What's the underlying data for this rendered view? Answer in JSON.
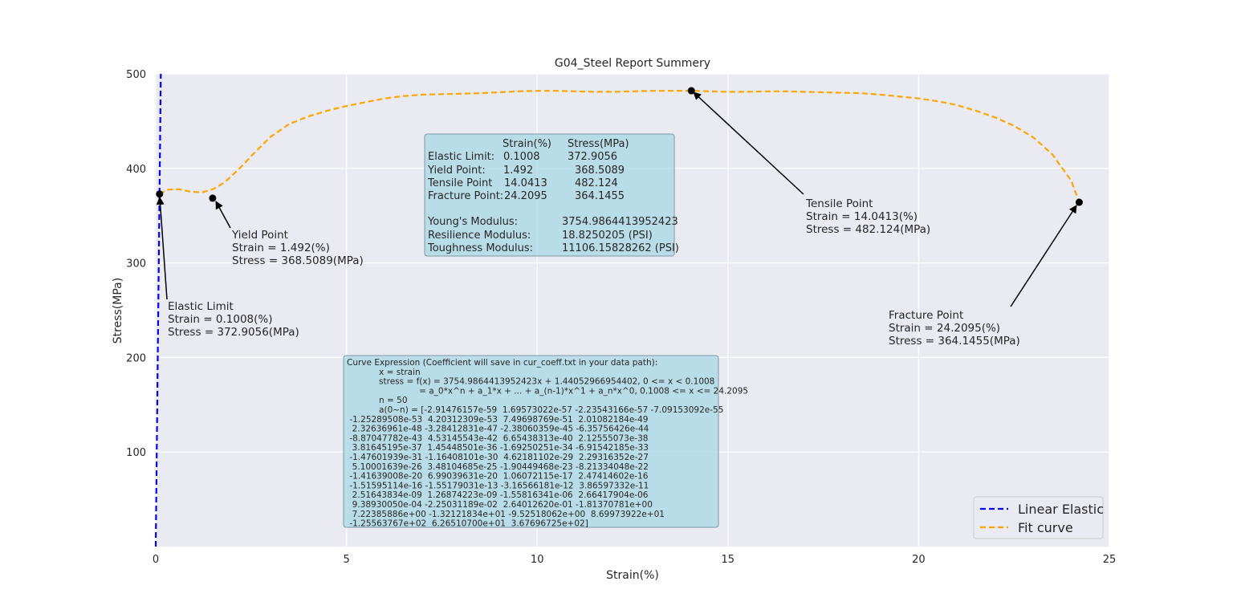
{
  "chart_data": {
    "type": "line",
    "title": "G04_Steel Report Summery",
    "xlabel": "Strain(%)",
    "ylabel": "Stress(MPa)",
    "xlim": [
      0,
      25
    ],
    "ylim": [
      0,
      500
    ],
    "xticks": [
      "0",
      "5",
      "10",
      "15",
      "20",
      "25"
    ],
    "yticks": [
      "100",
      "200",
      "300",
      "400",
      "500"
    ],
    "grid": true,
    "legend_position": "lower-right",
    "series": [
      {
        "name": "Linear Elastic",
        "color": "#0000ff",
        "style": "dashed",
        "x": [
          0,
          0.1331
        ],
        "y": [
          0,
          500
        ]
      },
      {
        "name": "Fit curve",
        "color": "#ffa500",
        "style": "dashed",
        "x": [
          0.1008,
          0.3,
          0.6,
          0.9,
          1.2,
          1.5,
          1.8,
          2.2,
          2.6,
          3.0,
          3.5,
          4.0,
          4.5,
          5.0,
          5.5,
          6.0,
          6.5,
          7.0,
          7.5,
          8.0,
          8.5,
          9.0,
          9.5,
          10.0,
          10.5,
          11.0,
          11.5,
          12.0,
          12.5,
          13.0,
          13.5,
          14.0413,
          14.5,
          15.0,
          15.5,
          16.0,
          16.5,
          17.0,
          17.5,
          18.0,
          18.5,
          19.0,
          19.5,
          20.0,
          20.5,
          21.0,
          21.5,
          22.0,
          22.5,
          23.0,
          23.5,
          24.0,
          24.2095
        ],
        "y": [
          372.9,
          377.5,
          378.0,
          375.5,
          374.5,
          378.0,
          385.0,
          400.0,
          417.0,
          433.0,
          447.0,
          455.0,
          461.0,
          466.0,
          470.0,
          474.0,
          476.5,
          478.0,
          478.5,
          479.0,
          479.5,
          480.5,
          481.5,
          482.0,
          482.0,
          481.5,
          481.0,
          481.0,
          481.5,
          482.0,
          482.0,
          482.124,
          481.5,
          481.0,
          481.0,
          481.5,
          481.5,
          481.0,
          480.5,
          480.0,
          479.5,
          478.0,
          476.0,
          474.0,
          471.0,
          467.0,
          461.0,
          454.0,
          445.0,
          433.0,
          415.0,
          387.0,
          364.1455
        ]
      }
    ],
    "points": [
      {
        "name": "Elastic Limit",
        "x": 0.1008,
        "y": 372.9056
      },
      {
        "name": "Yield Point",
        "x": 1.492,
        "y": 368.5089
      },
      {
        "name": "Tensile Point",
        "x": 14.0413,
        "y": 482.124
      },
      {
        "name": "Fracture Point",
        "x": 24.2095,
        "y": 364.1455
      }
    ],
    "annotations": [
      {
        "lines": [
          "Elastic Limit",
          "Strain = 0.1008(%)",
          "Stress = 372.9056(MPa)"
        ]
      },
      {
        "lines": [
          "Yield Point",
          "Strain = 1.492(%)",
          "Stress = 368.5089(MPa)"
        ]
      },
      {
        "lines": [
          "Tensile Point",
          "Strain = 14.0413(%)",
          "Stress = 482.124(MPa)"
        ]
      },
      {
        "lines": [
          "Fracture Point",
          "Strain = 24.2095(%)",
          "Stress = 364.1455(MPa)"
        ]
      }
    ],
    "summary_table": {
      "header": [
        "Strain(%)",
        "Stress(MPa)"
      ],
      "rows": [
        [
          "Elastic Limit:",
          "0.1008",
          "372.9056"
        ],
        [
          "Yield Point:",
          "1.492",
          "368.5089"
        ],
        [
          "Tensile Point",
          "14.0413",
          "482.124"
        ],
        [
          "Fracture Point:",
          "24.2095",
          "364.1455"
        ]
      ],
      "moduli": [
        [
          "Young's Modulus:",
          "3754.9864413952423"
        ],
        [
          "Resilience Modulus:",
          "18.8250205 (PSI)"
        ],
        [
          "Toughness Modulus:",
          "11106.15828262 (PSI)"
        ]
      ]
    },
    "curve_expression": [
      "Curve Expression (Coefficient will save in cur_coeff.txt in your data path):",
      "            x = strain",
      "            stress = f(x) = 3754.9864413952423x + 1.44052966954402, 0 <= x < 0.1008",
      "                           = a_0*x^n + a_1*x + ... + a_(n-1)*x^1 + a_n*x^0, 0.1008 <= x <= 24.2095",
      "            n = 50",
      "            a(0~n) = [-2.91476157e-59  1.69573022e-57 -2.23543166e-57 -7.09153092e-55",
      " -1.25289508e-53  4.20312309e-53  7.49698769e-51  2.01082184e-49",
      "  2.32636961e-48 -3.28412831e-47 -2.38060359e-45 -6.35756426e-44",
      " -8.87047782e-43  4.53145543e-42  6.65438313e-40  2.12555073e-38",
      "  3.81645195e-37  1.45448501e-36 -1.69250251e-34 -6.91542185e-33",
      " -1.47601939e-31 -1.16408101e-30  4.62181102e-29  2.29316352e-27",
      "  5.10001639e-26  3.48104685e-25 -1.90449468e-23 -8.21334048e-22",
      " -1.41639008e-20  6.99039631e-20  1.06072115e-17  2.47414602e-16",
      " -1.51595114e-16 -1.55179031e-13 -3.16566181e-12  3.86597332e-11",
      "  2.51643834e-09  1.26874223e-09 -1.55816341e-06  2.66417904e-06",
      "  9.38930050e-04 -2.25031189e-02  2.64012620e-01 -1.81370781e+00",
      "  7.22385886e+00 -1.32121834e+01 -9.52518062e+00  8.69973922e+01",
      " -1.25563767e+02  6.26510700e+01  3.67696725e+02]"
    ],
    "legend": [
      "Linear Elastic",
      "Fit curve"
    ]
  }
}
